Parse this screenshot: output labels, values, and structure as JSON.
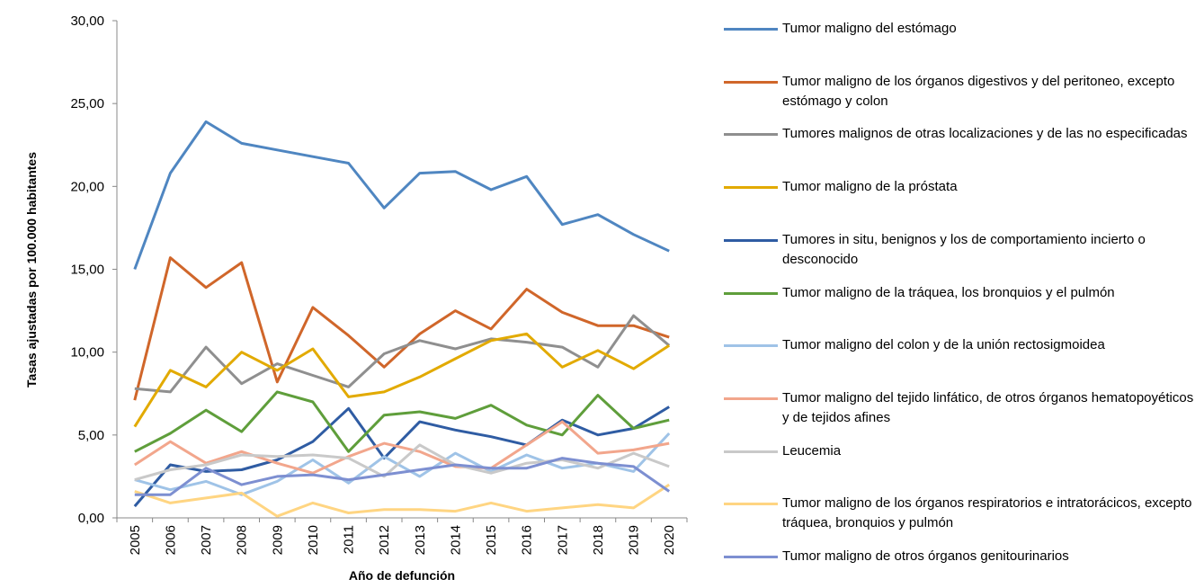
{
  "chart_data": {
    "type": "line",
    "ylabel": "Tasas ajustadas por 100.000 habitantes",
    "xlabel": "Año de defunción",
    "categories": [
      "2005",
      "2006",
      "2007",
      "2008",
      "2009",
      "2010",
      "2011",
      "2012",
      "2013",
      "2014",
      "2015",
      "2016",
      "2017",
      "2018",
      "2019",
      "2020"
    ],
    "ylim": [
      0,
      30
    ],
    "yticks": [
      {
        "value": 0,
        "label": "0,00"
      },
      {
        "value": 5,
        "label": "5,00"
      },
      {
        "value": 10,
        "label": "10,00"
      },
      {
        "value": 15,
        "label": "15,00"
      },
      {
        "value": 20,
        "label": "20,00"
      },
      {
        "value": 25,
        "label": "25,00"
      },
      {
        "value": 30,
        "label": "30,00"
      }
    ],
    "grid": false,
    "legend": "right",
    "series": [
      {
        "name": "Tumor maligno del estómago",
        "color": "#4f86c1",
        "values": [
          15.0,
          20.8,
          23.9,
          22.6,
          22.2,
          21.8,
          21.4,
          18.7,
          20.8,
          20.9,
          19.8,
          20.6,
          17.7,
          18.3,
          17.1,
          16.1
        ]
      },
      {
        "name": "Tumor maligno de los órganos digestivos y del peritoneo, excepto estómago y colon",
        "color": "#d0662a",
        "values": [
          7.1,
          15.7,
          13.9,
          15.4,
          8.2,
          12.7,
          11.0,
          9.1,
          11.1,
          12.5,
          11.4,
          13.8,
          12.4,
          11.6,
          11.6,
          10.9
        ]
      },
      {
        "name": "Tumores malignos de otras localizaciones y de las no especificadas",
        "color": "#8f8f8f",
        "values": [
          7.8,
          7.6,
          10.3,
          8.1,
          9.3,
          8.6,
          7.9,
          9.9,
          10.7,
          10.2,
          10.8,
          10.6,
          10.3,
          9.1,
          12.2,
          10.4
        ]
      },
      {
        "name": "Tumor maligno de la próstata",
        "color": "#e2aa00",
        "values": [
          5.5,
          8.9,
          7.9,
          10.0,
          8.9,
          10.2,
          7.3,
          7.6,
          8.5,
          9.6,
          10.7,
          11.1,
          9.1,
          10.1,
          9.0,
          10.4
        ]
      },
      {
        "name": "Tumores in situ, benignos y los de comportamiento incierto o desconocido",
        "color": "#2f5ca3",
        "values": [
          0.7,
          3.2,
          2.8,
          2.9,
          3.5,
          4.6,
          6.6,
          3.6,
          5.8,
          5.3,
          4.9,
          4.4,
          5.9,
          5.0,
          5.4,
          6.7
        ]
      },
      {
        "name": "Tumor maligno de la tráquea, los bronquios y el pulmón",
        "color": "#5f9e3b",
        "values": [
          4.0,
          5.1,
          6.5,
          5.2,
          7.6,
          7.0,
          4.0,
          6.2,
          6.4,
          6.0,
          6.8,
          5.6,
          5.0,
          7.4,
          5.4,
          5.9
        ]
      },
      {
        "name": "Tumor maligno del colon y de la unión rectosigmoidea",
        "color": "#9fc3e7",
        "values": [
          2.3,
          1.7,
          2.2,
          1.4,
          2.2,
          3.5,
          2.1,
          3.7,
          2.5,
          3.9,
          2.8,
          3.8,
          3.0,
          3.3,
          2.8,
          5.1
        ]
      },
      {
        "name": "Tumor maligno del tejido linfático, de otros órganos hematopoyéticos y de tejidos afines",
        "color": "#f2a68c",
        "values": [
          3.2,
          4.6,
          3.3,
          4.0,
          3.3,
          2.7,
          3.7,
          4.5,
          4.0,
          3.1,
          3.0,
          4.4,
          5.8,
          3.9,
          4.1,
          4.5
        ]
      },
      {
        "name": "Leucemia",
        "color": "#c9c9c9",
        "values": [
          2.3,
          2.9,
          3.2,
          3.8,
          3.7,
          3.8,
          3.6,
          2.5,
          4.4,
          3.2,
          2.7,
          3.3,
          3.5,
          3.0,
          3.9,
          3.1
        ]
      },
      {
        "name": "Tumor maligno de los órganos respiratorios e intratorácicos, excepto tráquea, bronquios y pulmón",
        "color": "#ffd582",
        "values": [
          1.6,
          0.9,
          1.2,
          1.5,
          0.1,
          0.9,
          0.3,
          0.5,
          0.5,
          0.4,
          0.9,
          0.4,
          0.6,
          0.8,
          0.6,
          2.0
        ]
      },
      {
        "name": "Tumor maligno de otros órganos genitourinarios",
        "color": "#7d8fd1",
        "values": [
          1.4,
          1.4,
          3.0,
          2.0,
          2.5,
          2.6,
          2.3,
          2.6,
          2.9,
          3.2,
          3.0,
          3.0,
          3.6,
          3.3,
          3.1,
          1.6
        ]
      }
    ]
  }
}
